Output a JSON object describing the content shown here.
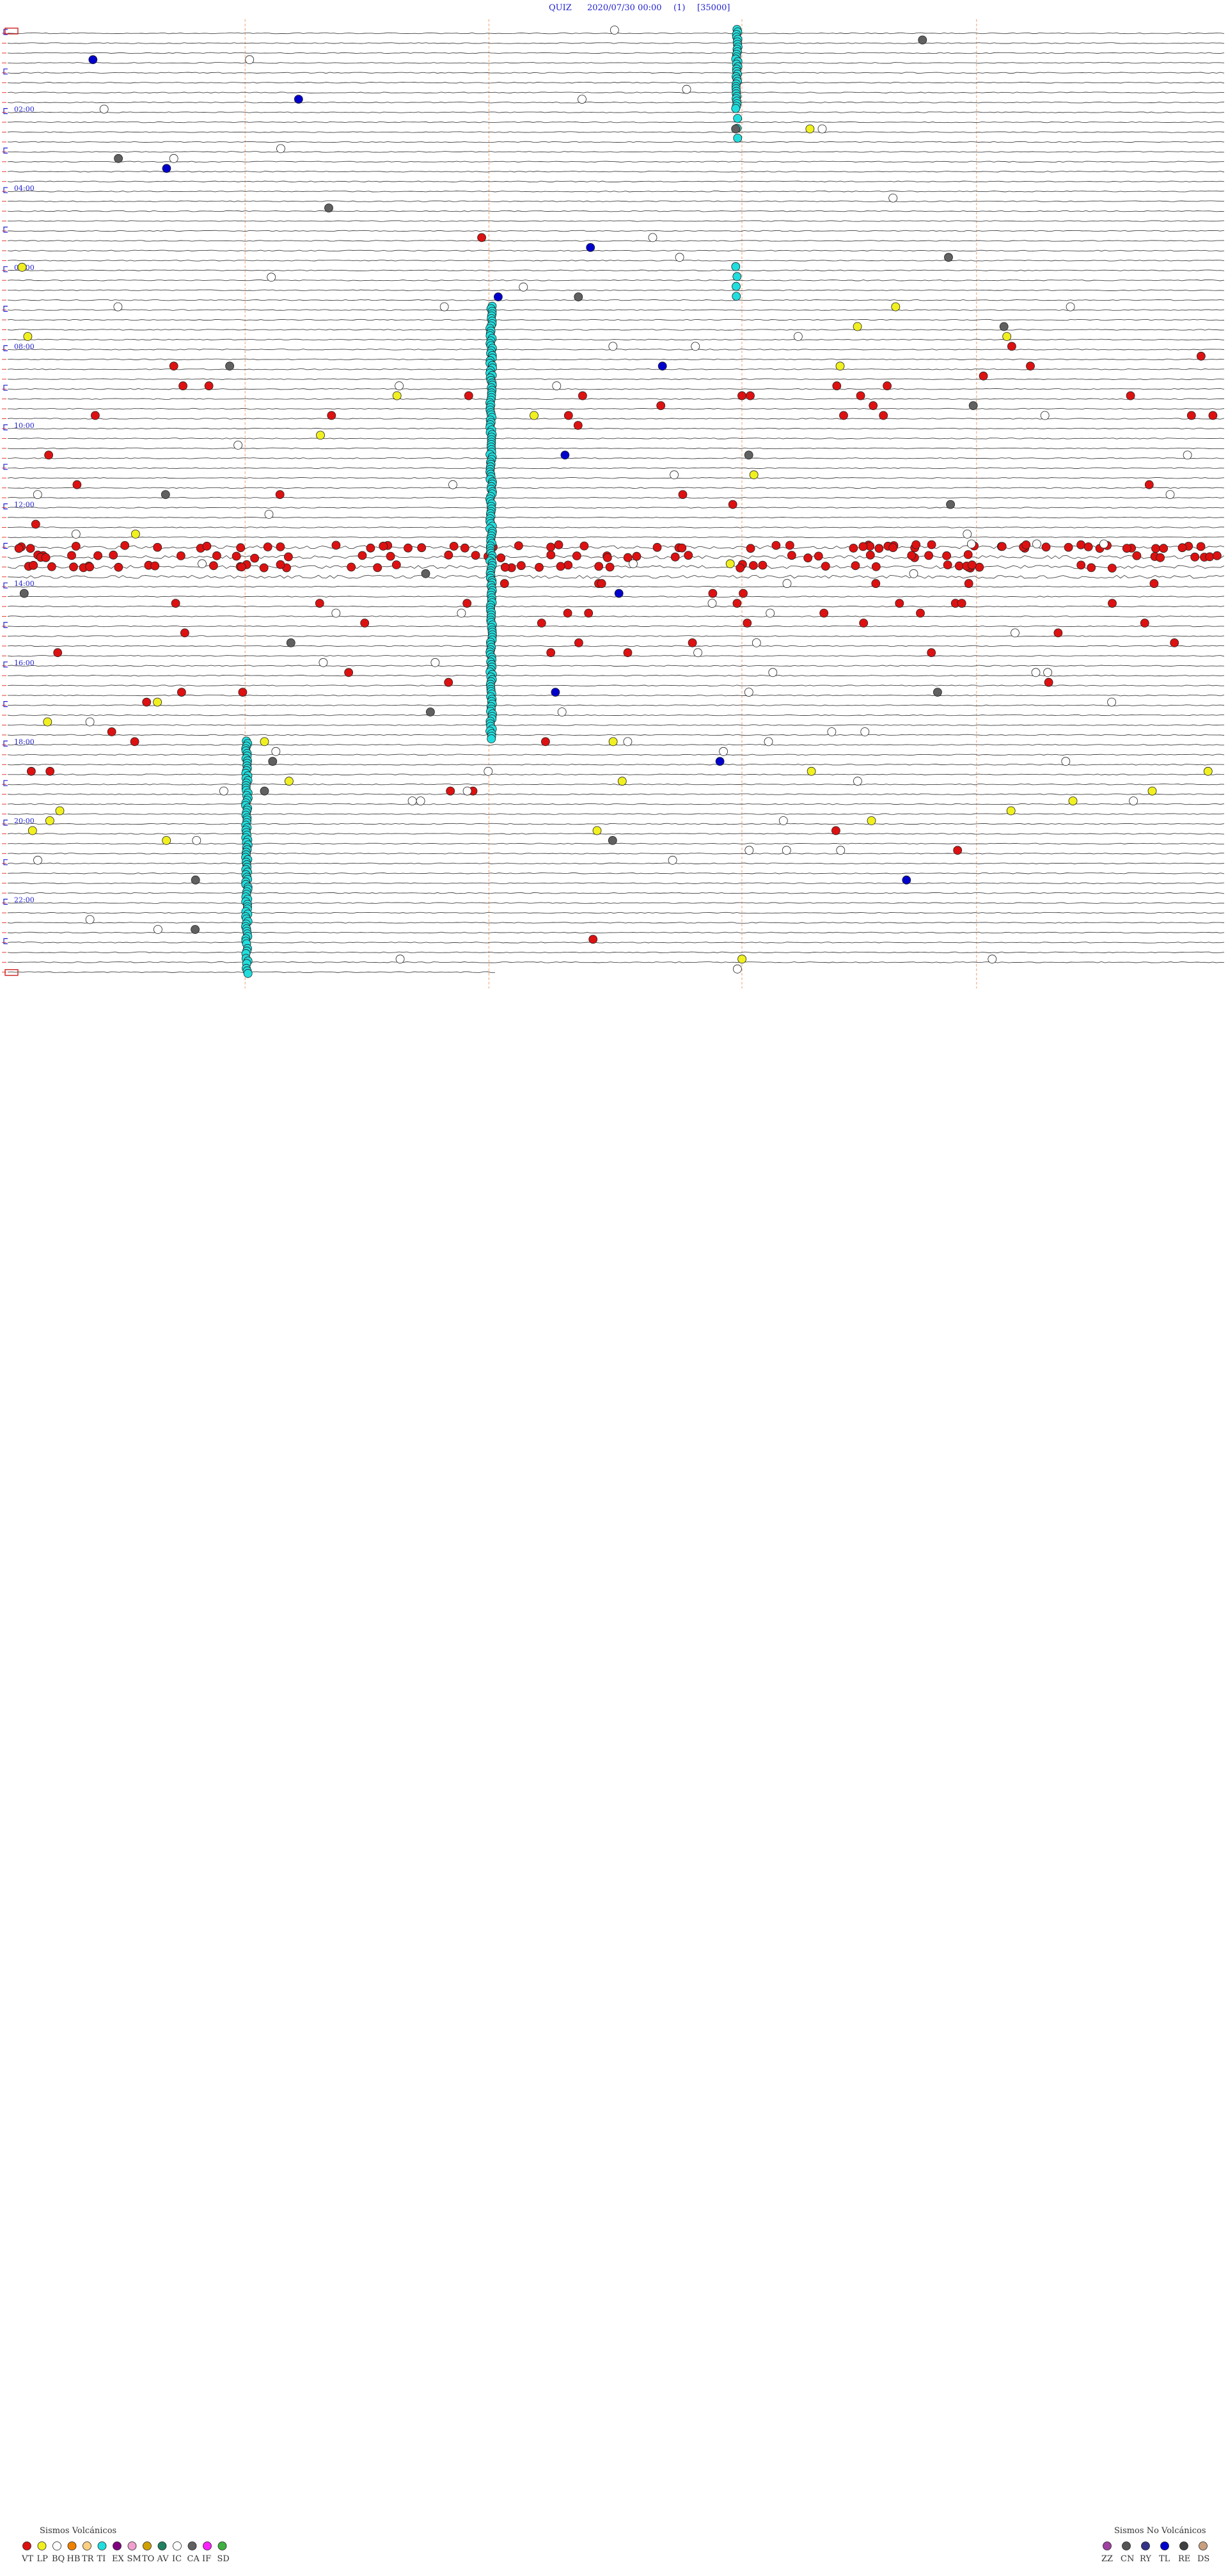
{
  "header": {
    "station": "QUIZ",
    "datetime": "2020/07/30 00:00",
    "channel": "(1)",
    "scale": "[35000]"
  },
  "chart_data": {
    "type": "helicorder",
    "title": "QUIZ 2020/07/30 00:00 (1) [35000]",
    "traces_count": 96,
    "minutes_per_trace": 15,
    "time_labels": [
      "02:00",
      "04:00",
      "06:00",
      "08:00",
      "10:00",
      "12:00",
      "14:00",
      "16:00",
      "18:00",
      "20:00",
      "22:00"
    ],
    "volcanic_legend": {
      "title": "Sismos Volcánicos",
      "classes": [
        {
          "code": "VT",
          "color": "#dd1111"
        },
        {
          "code": "LP",
          "color": "#f0f020"
        },
        {
          "code": "BQ",
          "color": "#ffffff"
        },
        {
          "code": "HB",
          "color": "#f08000"
        },
        {
          "code": "TR",
          "color": "#ffd080"
        },
        {
          "code": "TI",
          "color": "#22dddd"
        },
        {
          "code": "EX",
          "color": "#800080"
        },
        {
          "code": "SM",
          "color": "#f0a0d0"
        },
        {
          "code": "TO",
          "color": "#d0a000"
        },
        {
          "code": "AV",
          "color": "#208060"
        },
        {
          "code": "IC",
          "color": "#ffffff"
        },
        {
          "code": "CA",
          "color": "#606060"
        },
        {
          "code": "IF",
          "color": "#ff20ff"
        },
        {
          "code": "SD",
          "color": "#40b040"
        }
      ]
    },
    "nonvolcanic_legend": {
      "title": "Sismos No Volcánicos",
      "classes": [
        {
          "code": "ZZ",
          "color": "#a040a0"
        },
        {
          "code": "CN",
          "color": "#555555"
        },
        {
          "code": "RY",
          "color": "#333388"
        },
        {
          "code": "TL",
          "color": "#0000cc"
        },
        {
          "code": "RE",
          "color": "#404040"
        },
        {
          "code": "DS",
          "color": "#c8a080"
        }
      ]
    },
    "event_counts_by_hour": {
      "VT": [
        0,
        0,
        0,
        0,
        0,
        1,
        0,
        0,
        5,
        19,
        2,
        4,
        2,
        147,
        20,
        14,
        5,
        2,
        4,
        2,
        2,
        0,
        0,
        1
      ],
      "LP": [
        0,
        0,
        1,
        0,
        0,
        0,
        1,
        4,
        1,
        2,
        1,
        1,
        1,
        1,
        0,
        0,
        0,
        2,
        4,
        6,
        5,
        0,
        0,
        1
      ],
      "BQ": [
        2,
        2,
        2,
        2,
        1,
        2,
        2,
        4,
        2,
        3,
        2,
        4,
        3,
        6,
        5,
        3,
        6,
        5,
        6,
        6,
        5,
        2,
        2,
        3
      ],
      "TI": [
        14,
        14,
        3,
        0,
        0,
        0,
        2,
        14,
        14,
        14,
        14,
        14,
        14,
        14,
        14,
        14,
        14,
        14,
        14,
        14,
        14,
        14,
        14,
        10
      ],
      "CA": [
        1,
        0,
        1,
        1,
        1,
        1,
        1,
        1,
        1,
        1,
        1,
        1,
        1,
        1,
        1,
        1,
        1,
        1,
        1,
        1,
        1,
        1,
        1,
        0
      ],
      "TL": [
        1,
        1,
        0,
        1,
        0,
        1,
        1,
        0,
        1,
        0,
        1,
        0,
        0,
        0,
        1,
        0,
        1,
        0,
        1,
        0,
        0,
        1,
        0,
        0
      ]
    }
  }
}
